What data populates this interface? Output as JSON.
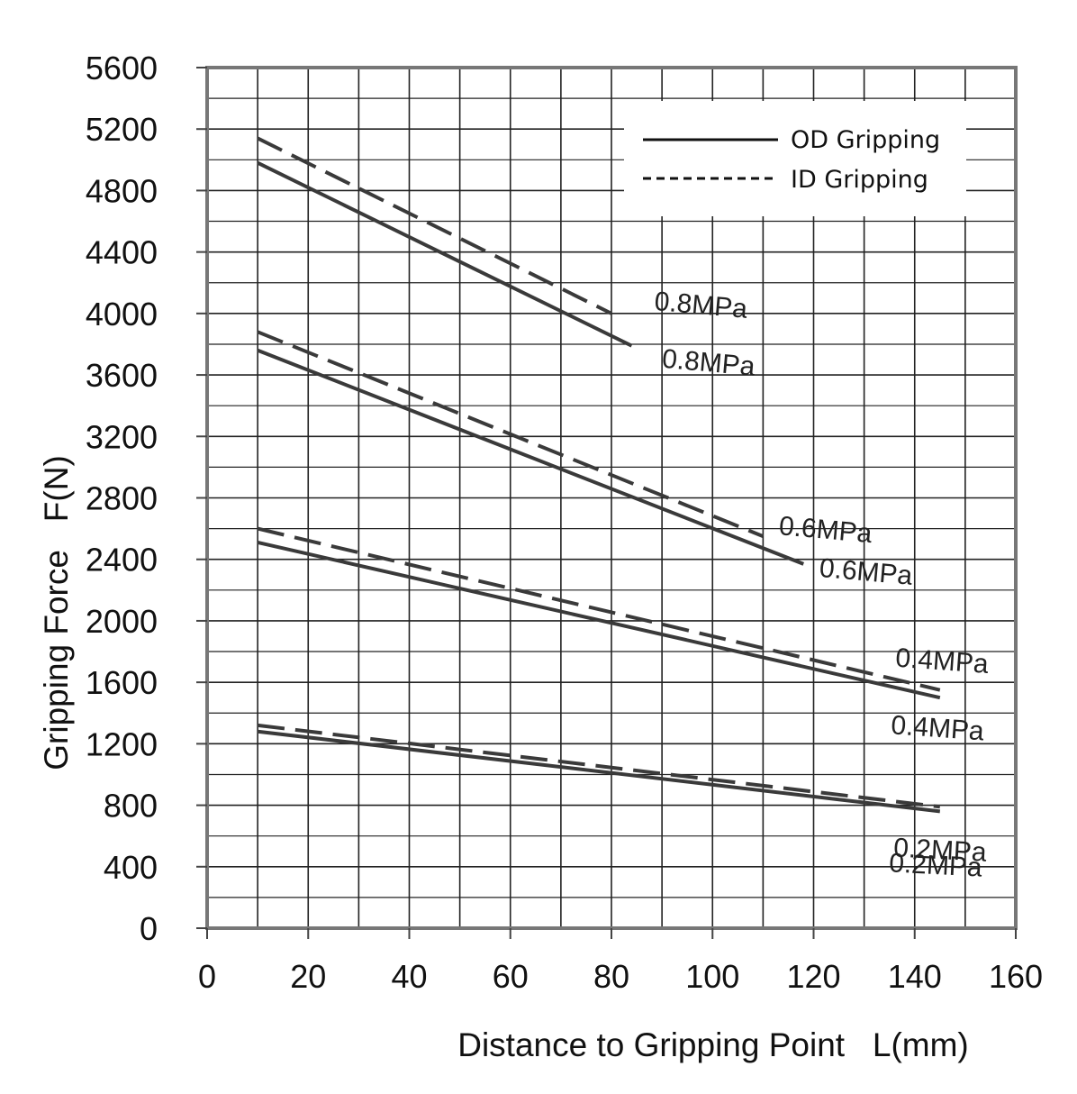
{
  "chart_data": {
    "type": "line",
    "xlabel": "Distance to Gripping Point   L(mm)",
    "ylabel": "Gripping Force   F(N)",
    "xlim": [
      0,
      160
    ],
    "ylim": [
      0,
      5600
    ],
    "x_ticks": [
      "0",
      "20",
      "40",
      "60",
      "80",
      "100",
      "120",
      "140",
      "160"
    ],
    "y_ticks": [
      "0",
      "400",
      "800",
      "1200",
      "1600",
      "2000",
      "2400",
      "2800",
      "3200",
      "3600",
      "4000",
      "4400",
      "4800",
      "5200",
      "5600"
    ],
    "grid": true,
    "legend": {
      "placement": "top-right",
      "entries": [
        {
          "label": "OD Gripping",
          "style": "solid"
        },
        {
          "label": "ID Gripping",
          "style": "dashed"
        }
      ]
    },
    "series": [
      {
        "style": "dashed",
        "label": "0.8MPa",
        "points": [
          {
            "x": 10,
            "y": 5140
          },
          {
            "x": 80,
            "y": 4000
          }
        ]
      },
      {
        "style": "solid",
        "label": "0.8MPa",
        "points": [
          {
            "x": 10,
            "y": 4980
          },
          {
            "x": 84,
            "y": 3790
          }
        ]
      },
      {
        "style": "dashed",
        "label": "0.6MPa",
        "points": [
          {
            "x": 10,
            "y": 3880
          },
          {
            "x": 110,
            "y": 2550
          }
        ]
      },
      {
        "style": "solid",
        "label": "0.6MPa",
        "points": [
          {
            "x": 10,
            "y": 3760
          },
          {
            "x": 118,
            "y": 2370
          }
        ]
      },
      {
        "style": "dashed",
        "label": "0.4MPa",
        "points": [
          {
            "x": 10,
            "y": 2600
          },
          {
            "x": 145,
            "y": 1550
          }
        ]
      },
      {
        "style": "solid",
        "label": "0.4MPa",
        "points": [
          {
            "x": 10,
            "y": 2510
          },
          {
            "x": 145,
            "y": 1500
          }
        ]
      },
      {
        "style": "dashed",
        "label": "0.2MPa",
        "points": [
          {
            "x": 10,
            "y": 1320
          },
          {
            "x": 145,
            "y": 790
          }
        ]
      },
      {
        "style": "solid",
        "label": "0.2MPa",
        "points": [
          {
            "x": 10,
            "y": 1280
          },
          {
            "x": 145,
            "y": 760
          }
        ]
      }
    ],
    "annotations": [
      "0.8MPa",
      "0.8MPa",
      "0.6MPa",
      "0.6MPa",
      "0.4MPa",
      "0.4MPa",
      "0.2MPa",
      "0.2MPa"
    ]
  }
}
